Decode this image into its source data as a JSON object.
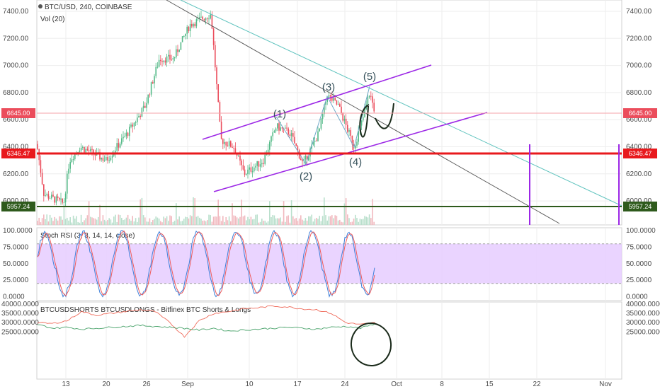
{
  "header": {
    "symbol_line": "BTC/USD, 240, COINBASE",
    "volume_label": "Vol (20)",
    "stoch_label": "Stoch RSI (3, 3, 14, 14, close)",
    "shorts_label": "BTCUSDSHORTS BTCUSDLONGS - Bitfinex BTC Shorts & Longs"
  },
  "price_tags": {
    "current": "6645.00",
    "support_red": "6346.47",
    "support_green": "5957.24"
  },
  "wave_labels": [
    "(1)",
    "(2)",
    "(3)",
    "(4)",
    "(5)"
  ],
  "colors": {
    "up": "#53b987",
    "down": "#eb4d5c",
    "channel": "#9c27e6",
    "red_line": "#e8191d",
    "green_line": "#2e5a1c",
    "teal_line": "#5fc3be",
    "grey_line": "#555555",
    "stoch_band": "#e6ccff"
  },
  "chart_data": [
    {
      "type": "candlestick",
      "title": "BTC/USD, 240, COINBASE",
      "x_ticks": [
        "13",
        "20",
        "26",
        "Sep",
        "10",
        "17",
        "24",
        "Oct",
        "8",
        "15",
        "22",
        "Nov"
      ],
      "y_ticks": [
        "7400.00",
        "7200.00",
        "7000.00",
        "6800.00",
        "6600.00",
        "6400.00",
        "6200.00",
        "6000.00"
      ],
      "ylim": [
        5850,
        7480
      ],
      "key_points": [
        {
          "x": "Aug 10",
          "y": 6420
        },
        {
          "x": "Aug 11",
          "y": 6050
        },
        {
          "x": "Aug 14",
          "y": 5980
        },
        {
          "x": "Aug 15",
          "y": 6300
        },
        {
          "x": "Aug 17",
          "y": 6400
        },
        {
          "x": "Aug 20",
          "y": 6300
        },
        {
          "x": "Aug 23",
          "y": 6500
        },
        {
          "x": "Aug 26",
          "y": 6700
        },
        {
          "x": "Aug 28",
          "y": 7050
        },
        {
          "x": "Aug 31",
          "y": 7050
        },
        {
          "x": "Sep 3",
          "y": 7300
        },
        {
          "x": "Sep 5",
          "y": 7380
        },
        {
          "x": "Sep 6",
          "y": 6450
        },
        {
          "x": "Sep 8",
          "y": 6400
        },
        {
          "x": "Sep 9",
          "y": 6200
        },
        {
          "x": "Sep 12",
          "y": 6300
        },
        {
          "x": "Sep 14",
          "y": 6550
        },
        {
          "x": "Sep 16",
          "y": 6500
        },
        {
          "x": "Sep 18",
          "y": 6270
        },
        {
          "x": "Sep 20",
          "y": 6500
        },
        {
          "x": "Sep 21",
          "y": 6780
        },
        {
          "x": "Sep 23",
          "y": 6700
        },
        {
          "x": "Sep 25",
          "y": 6400
        },
        {
          "x": "Sep 27",
          "y": 6600
        },
        {
          "x": "Sep 28",
          "y": 6800
        },
        {
          "x": "Sep 29",
          "y": 6645
        }
      ],
      "volume_label": "Vol (20)"
    },
    {
      "type": "line",
      "title": "Stoch RSI (3, 3, 14, 14, close)",
      "y_ticks": [
        "100.0000",
        "75.0000",
        "50.0000",
        "25.0000",
        "0.0000"
      ],
      "ylim": [
        0,
        100
      ],
      "band": [
        20,
        80
      ]
    },
    {
      "type": "line",
      "title": "BTCUSDSHORTS BTCUSDLONGS - Bitfinex BTC Shorts & Longs",
      "y_ticks": [
        "40000.0000",
        "35000.0000",
        "30000.0000",
        "25000.0000"
      ],
      "ylim": [
        21500,
        40500
      ],
      "series": [
        {
          "name": "BTCUSDSHORTS",
          "values": [
            30000,
            29500,
            31000,
            36000,
            34000,
            35000,
            36000,
            37000,
            36000,
            30000,
            22500,
            31000,
            35000,
            36000,
            37500,
            38000,
            39000,
            38500,
            37500,
            37000,
            35000,
            30000,
            29000,
            30000
          ]
        },
        {
          "name": "BTCUSDLONGS",
          "values": [
            29000,
            27000,
            27500,
            26500,
            27000,
            27500,
            28000,
            28500,
            28000,
            27500,
            27000,
            26000,
            27000,
            25500,
            26000,
            26500,
            27000,
            27500,
            27000,
            26500,
            27500,
            28000,
            27000,
            29500
          ]
        }
      ]
    }
  ]
}
